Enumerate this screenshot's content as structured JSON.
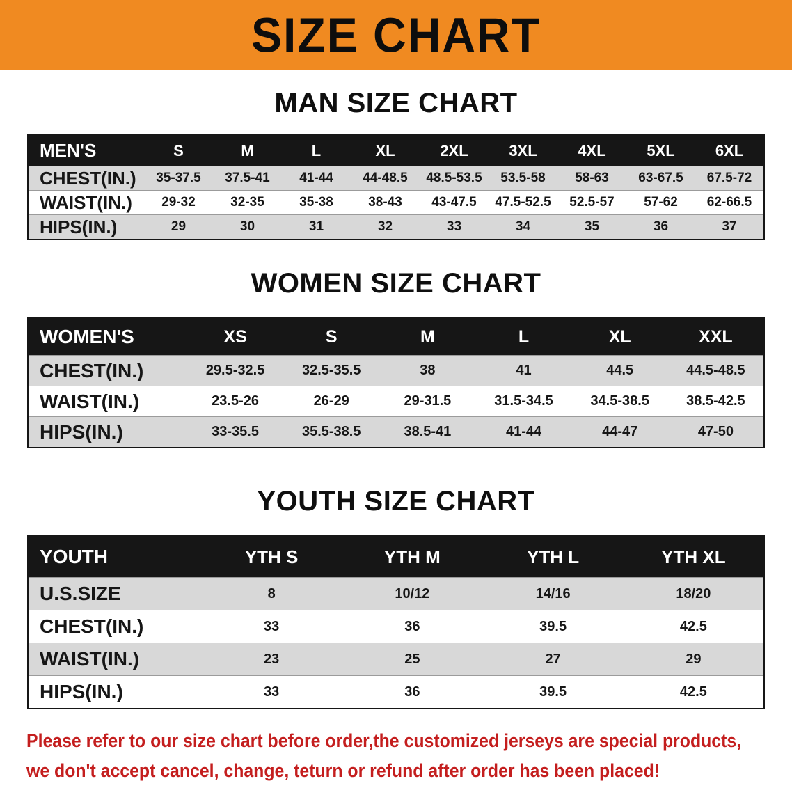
{
  "banner": {
    "title": "SIZE CHART"
  },
  "sections": [
    {
      "heading": "MAN SIZE CHART",
      "table": {
        "label": "MEN'S",
        "columns": [
          "S",
          "M",
          "L",
          "XL",
          "2XL",
          "3XL",
          "4XL",
          "5XL",
          "6XL"
        ],
        "rows": [
          {
            "label": "CHEST(IN.)",
            "values": [
              "35-37.5",
              "37.5-41",
              "41-44",
              "44-48.5",
              "48.5-53.5",
              "53.5-58",
              "58-63",
              "63-67.5",
              "67.5-72"
            ]
          },
          {
            "label": "WAIST(IN.)",
            "values": [
              "29-32",
              "32-35",
              "35-38",
              "38-43",
              "43-47.5",
              "47.5-52.5",
              "52.5-57",
              "57-62",
              "62-66.5"
            ]
          },
          {
            "label": "HIPS(IN.)",
            "values": [
              "29",
              "30",
              "31",
              "32",
              "33",
              "34",
              "35",
              "36",
              "37"
            ]
          }
        ]
      }
    },
    {
      "heading": "WOMEN SIZE CHART",
      "table": {
        "label": "WOMEN'S",
        "columns": [
          "XS",
          "S",
          "M",
          "L",
          "XL",
          "XXL"
        ],
        "rows": [
          {
            "label": "CHEST(IN.)",
            "values": [
              "29.5-32.5",
              "32.5-35.5",
              "38",
              "41",
              "44.5",
              "44.5-48.5"
            ]
          },
          {
            "label": "WAIST(IN.)",
            "values": [
              "23.5-26",
              "26-29",
              "29-31.5",
              "31.5-34.5",
              "34.5-38.5",
              "38.5-42.5"
            ]
          },
          {
            "label": "HIPS(IN.)",
            "values": [
              "33-35.5",
              "35.5-38.5",
              "38.5-41",
              "41-44",
              "44-47",
              "47-50"
            ]
          }
        ]
      }
    },
    {
      "heading": "YOUTH SIZE CHART",
      "table": {
        "label": "YOUTH",
        "columns": [
          "YTH S",
          "YTH M",
          "YTH L",
          "YTH XL"
        ],
        "rows": [
          {
            "label": "U.S.SIZE",
            "values": [
              "8",
              "10/12",
              "14/16",
              "18/20"
            ]
          },
          {
            "label": "CHEST(IN.)",
            "values": [
              "33",
              "36",
              "39.5",
              "42.5"
            ]
          },
          {
            "label": "WAIST(IN.)",
            "values": [
              "23",
              "25",
              "27",
              "29"
            ]
          },
          {
            "label": "HIPS(IN.)",
            "values": [
              "33",
              "36",
              "39.5",
              "42.5"
            ]
          }
        ]
      }
    }
  ],
  "footer": {
    "lines": [
      "Please refer to our size chart before order,the customized jerseys are special products,",
      "we don't accept cancel, change, teturn or refund after order has been placed!"
    ]
  },
  "colors": {
    "banner_orange": "#f08a21",
    "header_black": "#161616",
    "row_gray": "#d8d8d8",
    "note_red": "#c41e1e"
  }
}
